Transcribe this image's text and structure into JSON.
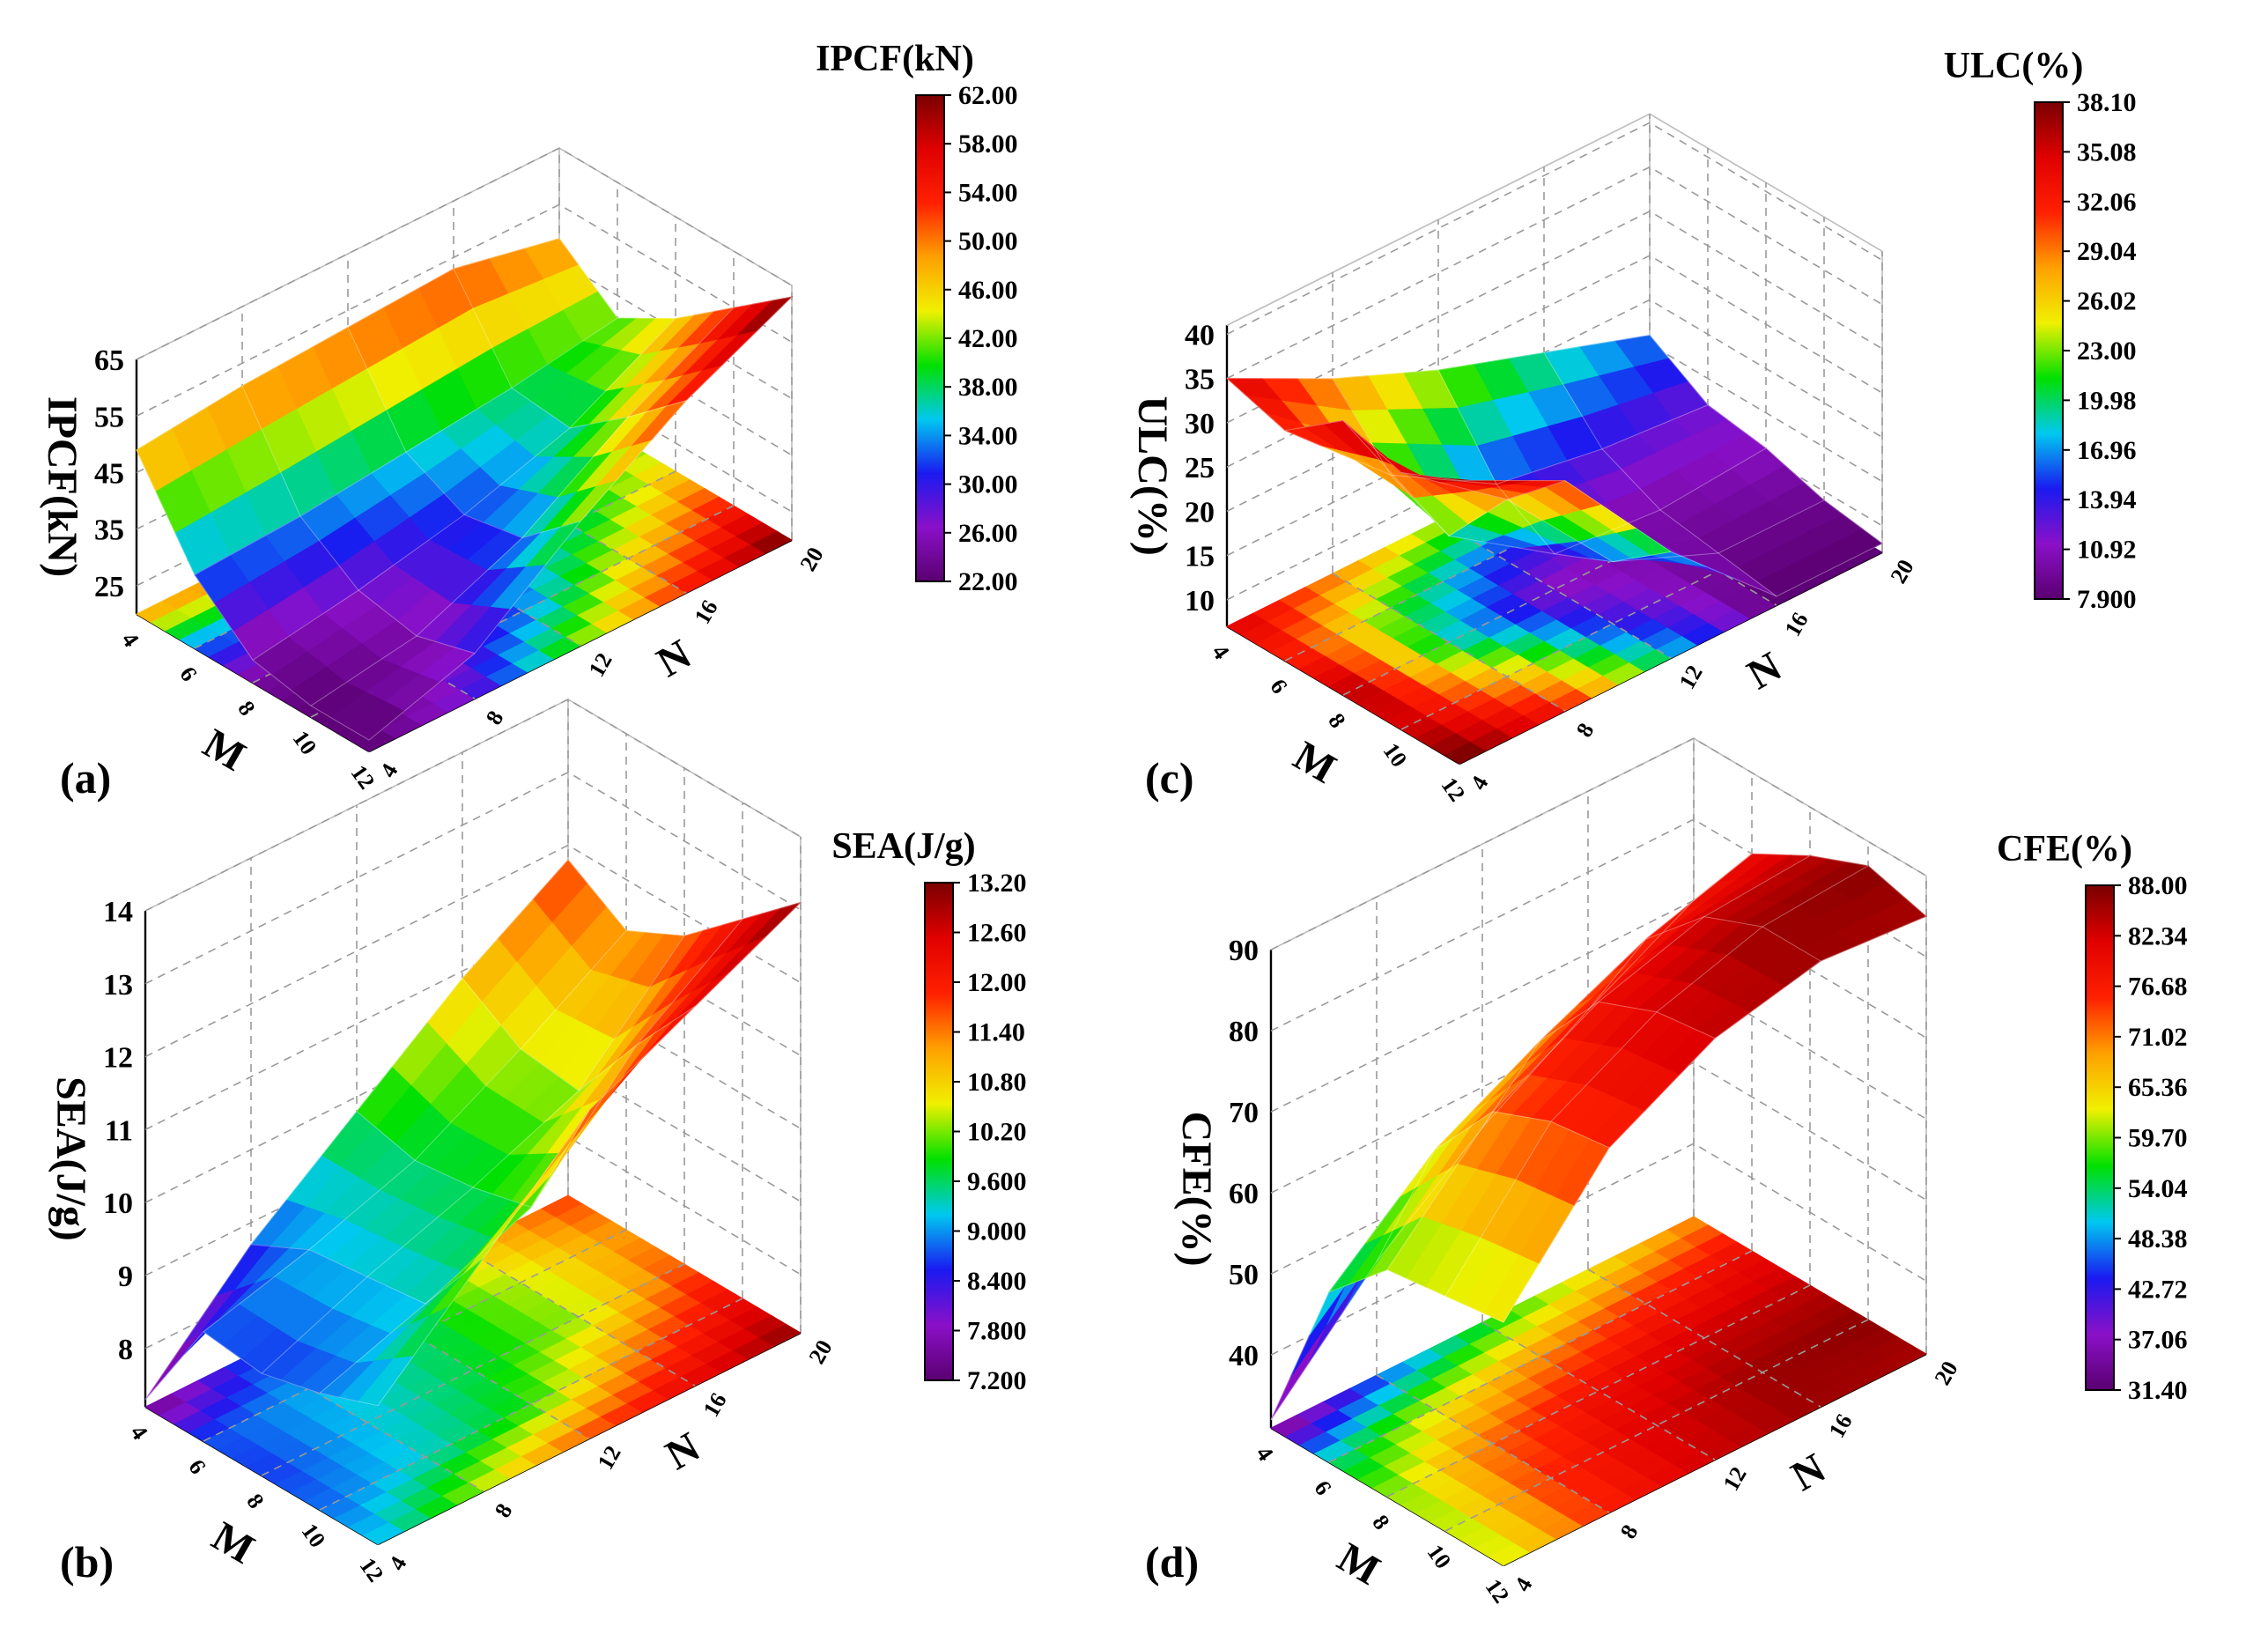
{
  "figure": {
    "colors": [
      "#5a0070",
      "#8a10c8",
      "#1a1af0",
      "#00c8f0",
      "#00e000",
      "#f0f000",
      "#ffa000",
      "#ff2000",
      "#e00000",
      "#7a0000"
    ],
    "panels": [
      {
        "label": "(a)",
        "chart_data": {
          "type": "surface3d",
          "zlabel": "IPCF(kN)",
          "xlabel": "M",
          "ylabel": "N",
          "x_ticks": [
            "4",
            "6",
            "8",
            "10",
            "12"
          ],
          "y_ticks": [
            "4",
            "8",
            "12",
            "16",
            "20"
          ],
          "z_ticks": [
            "25",
            "35",
            "45",
            "55",
            "65"
          ],
          "zlim": [
            20,
            65
          ],
          "colorbar": {
            "title": "IPCF(kN)",
            "ticks": [
              "62.00",
              "58.00",
              "54.00",
              "50.00",
              "46.00",
              "42.00",
              "38.00",
              "34.00",
              "30.00",
              "26.00",
              "22.00"
            ],
            "min": 22,
            "max": 62
          },
          "x_values": [
            4,
            6,
            8,
            10,
            12
          ],
          "y_values": [
            4,
            8,
            12,
            16,
            20
          ],
          "z_grid": [
            [
              49,
              51,
              52,
              53,
              49
            ],
            [
              33,
              34,
              36,
              38,
              41
            ],
            [
              24,
              27,
              31,
              37,
              47
            ],
            [
              22,
              25,
              33,
              45,
              55
            ],
            [
              22,
              28,
              42,
              54,
              63
            ]
          ]
        }
      },
      {
        "label": "(c)",
        "chart_data": {
          "type": "surface3d",
          "zlabel": "ULC(%)",
          "xlabel": "M",
          "ylabel": "N",
          "x_ticks": [
            "4",
            "6",
            "8",
            "10",
            "12"
          ],
          "y_ticks": [
            "4",
            "8",
            "12",
            "16",
            "20"
          ],
          "z_ticks": [
            "10",
            "15",
            "20",
            "25",
            "30",
            "35",
            "40"
          ],
          "zlim": [
            7,
            41
          ],
          "colorbar": {
            "title": "ULC(%)",
            "ticks": [
              "38.10",
              "35.08",
              "32.06",
              "29.04",
              "26.02",
              "23.00",
              "19.98",
              "16.96",
              "13.94",
              "10.92",
              "7.900"
            ],
            "min": 7.9,
            "max": 38.1
          },
          "x_values": [
            4,
            6,
            8,
            10,
            12
          ],
          "y_values": [
            4,
            8,
            12,
            16,
            20
          ],
          "z_grid": [
            [
              35,
              29,
              24,
              20,
              16
            ],
            [
              33,
              22,
              15,
              13,
              12
            ],
            [
              38,
              19,
              11,
              10,
              11
            ],
            [
              36,
              27,
              14,
              9,
              9
            ],
            [
              39,
              33,
              19,
              8,
              8
            ]
          ]
        }
      },
      {
        "label": "(b)",
        "chart_data": {
          "type": "surface3d",
          "zlabel": "SEA(J/g)",
          "xlabel": "M",
          "ylabel": "N",
          "x_ticks": [
            "4",
            "6",
            "8",
            "10",
            "12"
          ],
          "y_ticks": [
            "4",
            "8",
            "12",
            "16",
            "20"
          ],
          "z_ticks": [
            "8",
            "9",
            "10",
            "11",
            "12",
            "13",
            "14"
          ],
          "zlim": [
            7.2,
            14
          ],
          "colorbar": {
            "title": "SEA(J/g)",
            "ticks": [
              "13.20",
              "12.60",
              "12.00",
              "11.40",
              "10.80",
              "10.20",
              "9.600",
              "9.000",
              "8.400",
              "7.800",
              "7.200"
            ],
            "min": 7.2,
            "max": 13.2
          },
          "x_values": [
            4,
            6,
            8,
            10,
            12
          ],
          "y_values": [
            4,
            8,
            12,
            16,
            20
          ],
          "z_grid": [
            [
              7.3,
              8.7,
              9.8,
              10.9,
              11.8
            ],
            [
              8.7,
              9.1,
              9.6,
              10.4,
              11.3
            ],
            [
              8.6,
              9.2,
              9.7,
              10.3,
              11.7
            ],
            [
              8.8,
              9.3,
              9.9,
              11.4,
              12.4
            ],
            [
              9.1,
              10.4,
              11.7,
              12.4,
              13.1
            ]
          ]
        }
      },
      {
        "label": "(d)",
        "chart_data": {
          "type": "surface3d",
          "zlabel": "CFE(%)",
          "xlabel": "M",
          "ylabel": "N",
          "x_ticks": [
            "4",
            "6",
            "8",
            "10",
            "12"
          ],
          "y_ticks": [
            "4",
            "8",
            "12",
            "16",
            "20"
          ],
          "z_ticks": [
            "40",
            "50",
            "60",
            "70",
            "80",
            "90"
          ],
          "zlim": [
            31,
            90
          ],
          "colorbar": {
            "title": "CFE(%)",
            "ticks": [
              "88.00",
              "82.34",
              "76.68",
              "71.02",
              "65.36",
              "59.70",
              "54.04",
              "48.38",
              "42.72",
              "37.06",
              "31.40"
            ],
            "min": 31.4,
            "max": 88
          },
          "x_values": [
            4,
            6,
            8,
            10,
            12
          ],
          "y_values": [
            4,
            8,
            12,
            16,
            20
          ],
          "z_grid": [
            [
              32,
              45,
              55,
              63,
              70
            ],
            [
              52,
              63,
              70,
              76,
              80
            ],
            [
              59,
              72,
              79,
              83,
              84
            ],
            [
              60,
              75,
              82,
              86,
              87
            ],
            [
              61,
              76,
              83,
              86,
              85
            ]
          ]
        }
      }
    ]
  }
}
